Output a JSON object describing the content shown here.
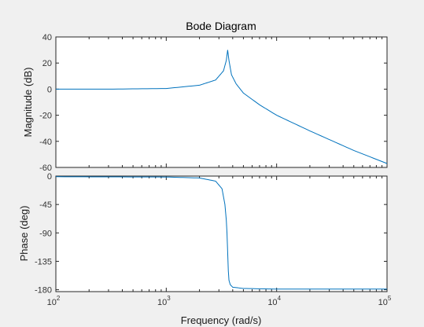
{
  "chart_data": {
    "type": "line",
    "title": "Bode Diagram",
    "xlabel": "Frequency  (rad/s)",
    "xscale": "log",
    "xlim": [
      100,
      100000
    ],
    "x_ticks": [
      {
        "value": 100,
        "base": "10",
        "exp": "2"
      },
      {
        "value": 1000,
        "base": "10",
        "exp": "3"
      },
      {
        "value": 10000,
        "base": "10",
        "exp": "4"
      },
      {
        "value": 100000,
        "base": "10",
        "exp": "5"
      }
    ],
    "line_color": "#0072bd",
    "panels": [
      {
        "name": "magnitude",
        "ylabel": "Magnitude (dB)",
        "ylim": [
          -60,
          40
        ],
        "yticks": [
          40,
          20,
          0,
          -20,
          -40,
          -60
        ],
        "x": [
          100,
          300,
          1000,
          2000,
          2800,
          3300,
          3500,
          3600,
          3700,
          3900,
          4300,
          5000,
          7000,
          10000,
          20000,
          50000,
          100000
        ],
        "y": [
          0,
          0,
          0.5,
          3,
          7,
          14,
          22,
          30,
          22,
          11,
          4,
          -3,
          -12,
          -20,
          -32,
          -47,
          -57
        ]
      },
      {
        "name": "phase",
        "ylabel": "Phase (deg)",
        "ylim": [
          -183,
          0
        ],
        "yticks": [
          0,
          -45,
          -90,
          -135,
          -180
        ],
        "x": [
          100,
          1000,
          2000,
          2800,
          3200,
          3400,
          3500,
          3550,
          3600,
          3650,
          3700,
          3800,
          4000,
          5000,
          10000,
          100000
        ],
        "y": [
          -1,
          -1.5,
          -3,
          -8,
          -20,
          -45,
          -70,
          -90,
          -120,
          -150,
          -165,
          -172,
          -176,
          -178,
          -179,
          -179
        ]
      }
    ]
  }
}
